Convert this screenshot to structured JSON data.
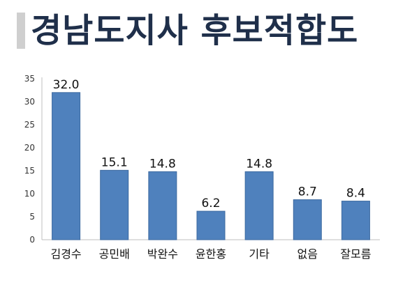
{
  "title": "경남도지사 후보적합도",
  "colors": {
    "bar": "#4f81bd",
    "bar_edge": "#3d6aa0",
    "title": "#1f2f4a",
    "accent_bar": "#cfcfcf"
  },
  "chart_data": {
    "type": "bar",
    "categories": [
      "김경수",
      "공민배",
      "박완수",
      "윤한홍",
      "기타",
      "없음",
      "잘모름"
    ],
    "values": [
      32.0,
      15.1,
      14.8,
      6.2,
      14.8,
      8.7,
      8.4
    ],
    "value_labels": [
      "32.0",
      "15.1",
      "14.8",
      "6.2",
      "14.8",
      "8.7",
      "8.4"
    ],
    "yticks": [
      "0",
      "5",
      "10",
      "15",
      "20",
      "25",
      "30",
      "35"
    ],
    "ylim": [
      0,
      35
    ],
    "grid": false,
    "legend": "none"
  }
}
